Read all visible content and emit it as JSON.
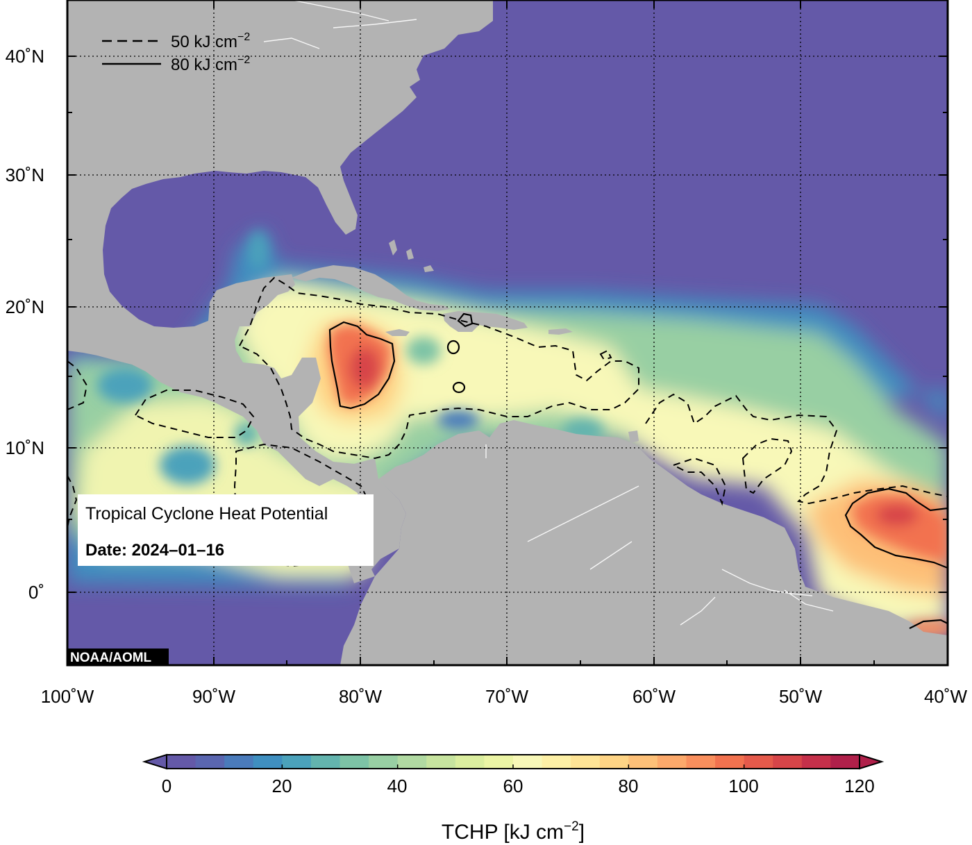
{
  "map": {
    "title": "Tropical Cyclone Heat Potential",
    "date_label": "Date: 2024–01–16",
    "credit": "NOAA/AOML",
    "lon_range": [
      -100,
      -40
    ],
    "lat_range": [
      -5,
      44
    ],
    "ocean_color": "#6459a8",
    "land_color": "#b3b3b3",
    "lat_ticks": [
      {
        "value": 40,
        "label": "40˚N"
      },
      {
        "value": 30,
        "label": "30˚N"
      },
      {
        "value": 20,
        "label": "20˚N"
      },
      {
        "value": 10,
        "label": "10˚N"
      },
      {
        "value": 0,
        "label": "0˚"
      }
    ],
    "lon_ticks": [
      {
        "value": -100,
        "label": "100˚W"
      },
      {
        "value": -90,
        "label": "90˚W"
      },
      {
        "value": -80,
        "label": "80˚W"
      },
      {
        "value": -70,
        "label": "70˚W"
      },
      {
        "value": -60,
        "label": "60˚W"
      },
      {
        "value": -50,
        "label": "50˚W"
      },
      {
        "value": -40,
        "label": "40˚W"
      }
    ],
    "contour_legend": [
      {
        "style": "dashed",
        "value": "50",
        "unit": "kJ cm",
        "exp": "−2"
      },
      {
        "style": "solid",
        "value": "80",
        "unit": "kJ cm",
        "exp": "−2"
      }
    ]
  },
  "colorbar": {
    "title": "TCHP [kJ cm",
    "title_exp": "−2",
    "title_end": "]",
    "min": 0,
    "max": 120,
    "step": 5,
    "tick_labels": [
      "0",
      "20",
      "40",
      "60",
      "80",
      "100",
      "120"
    ],
    "colors": [
      "#6459a8",
      "#5a66b0",
      "#4a7bbb",
      "#3f8fc0",
      "#4ba2bb",
      "#63b4ae",
      "#7dc3a6",
      "#98cfa3",
      "#b1daa2",
      "#c7e49f",
      "#dbee9f",
      "#ecf5a5",
      "#f8f8b8",
      "#fdf0a6",
      "#fee496",
      "#fed485",
      "#fdc078",
      "#fca96b",
      "#f98f5d",
      "#f2724f",
      "#e55a4b",
      "#d74549",
      "#c5304a",
      "#b0204a"
    ]
  }
}
